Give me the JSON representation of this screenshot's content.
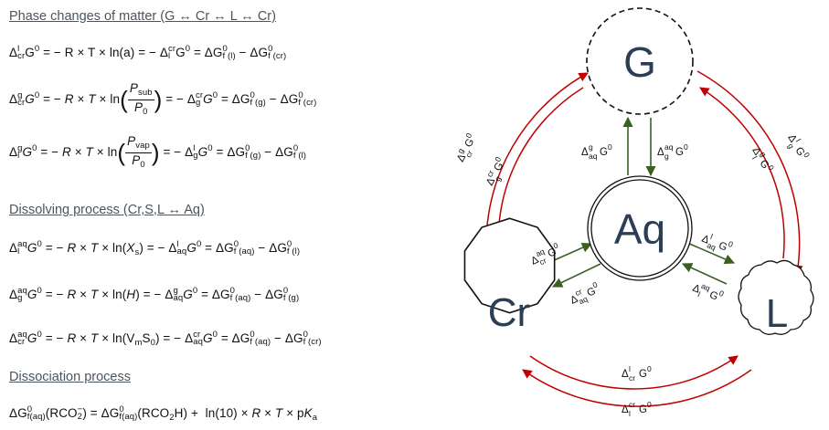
{
  "sections": {
    "phase": "Phase changes of matter (G ↔ Cr ↔ L ↔ Cr)",
    "dissolving": "Dissolving process (Cr,S,L ↔ Aq)",
    "dissociation": "Dissociation process"
  },
  "equations": {
    "eq1": "ΔlcrG0 = − R × T × ln(a) = − ΔcrlG0 = ΔG0f (l) − ΔG0f (cr)",
    "eq2": "ΔgcrG0 = − R × T × ln(Psub/P0) = − ΔcrgG0 = ΔG0f (g) − ΔG0f (cr)",
    "eq3": "ΔglG0 = − R × T × ln(Pvap/P0) = − ΔlgG0 = ΔG0f (g) − ΔG0f (l)",
    "eq4": "ΔaqlG0 = − R × T × ln(Xs) = − ΔlaqG0 = ΔG0f (aq) − ΔG0f (l)",
    "eq5": "ΔaqgG0 = − R × T × ln(H) = − ΔgaqG0 = ΔG0f (aq) − ΔG0f (g)",
    "eq6": "ΔaqcrG0 = − R × T × ln(VmS0) = − ΔcraqG0 = ΔG0f (aq) − ΔG0f (cr)",
    "eq7": "ΔG0f(aq)(RCO2−) = ΔG0f(aq)(RCO2H) + ln(10) × R × T × pKa"
  },
  "nodes": {
    "G": "G",
    "Aq": "Aq",
    "Cr": "Cr",
    "L": "L"
  },
  "colors": {
    "outer_arrows": "#c00000",
    "inner_arrows": "#3a5f22",
    "node_text": "#2c3e55",
    "heading": "#4a5560"
  },
  "arrow_labels": {
    "cr_to_g": "ΔgcrG0",
    "g_to_cr": "ΔcrgG0",
    "g_to_l": "ΔlgG0",
    "l_to_g": "ΔglG0",
    "aq_to_g": "ΔgaqG0",
    "g_to_aq": "ΔaqgG0",
    "cr_to_aq": "ΔaqcrG0",
    "aq_to_cr": "ΔcraqG0",
    "aq_to_l": "ΔlaqG0",
    "l_to_aq": "ΔaqlG0",
    "cr_to_l": "ΔlcrG0",
    "l_to_cr": "ΔcrlG0"
  }
}
